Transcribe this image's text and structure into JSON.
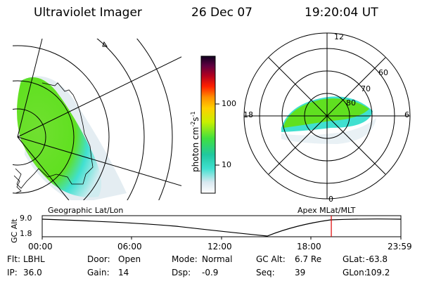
{
  "header": {
    "title": "Ultraviolet Imager",
    "date": "26 Dec 07",
    "time": "19:20:04 UT"
  },
  "colorbar": {
    "label": "photon cm",
    "exp_label": "-2",
    "unit2": "s",
    "exp2": "-1",
    "ticks": [
      "100",
      "10"
    ]
  },
  "polar": {
    "mlt_labels": {
      "top": "12",
      "left": "18",
      "right": "6",
      "bottom": "0"
    },
    "lat_labels": [
      "60",
      "70",
      "80"
    ]
  },
  "maps": {
    "left_caption": "Geographic Lat/Lon",
    "right_caption": "Apex MLat/MLT"
  },
  "altplot": {
    "ylabel": "GC Alt",
    "y_ticks": [
      "9.0",
      "1.8"
    ],
    "x_ticks": [
      "00:00",
      "06:00",
      "12:00",
      "18:00",
      "23:59"
    ],
    "current_time_fraction": 0.806
  },
  "info": {
    "row1": [
      {
        "k": "Flt:",
        "v": "LBHL"
      },
      {
        "k": "Door:",
        "v": "Open"
      },
      {
        "k": "Mode:",
        "v": "Normal"
      },
      {
        "k": "GC Alt:",
        "v": "6.7 Re"
      },
      {
        "k": "GLat:",
        "v": "-63.8"
      }
    ],
    "row2": [
      {
        "k": "IP:",
        "v": "36.0"
      },
      {
        "k": "Gain:",
        "v": "14"
      },
      {
        "k": "Dsp:",
        "v": "-0.9"
      },
      {
        "k": "Seq:",
        "v": "39"
      },
      {
        "k": "GLon:",
        "v": "109.2"
      }
    ]
  },
  "colors": {
    "accent_line": "#e00000",
    "aurora_green": "#60e020",
    "aurora_cyan": "#40e0d0"
  }
}
